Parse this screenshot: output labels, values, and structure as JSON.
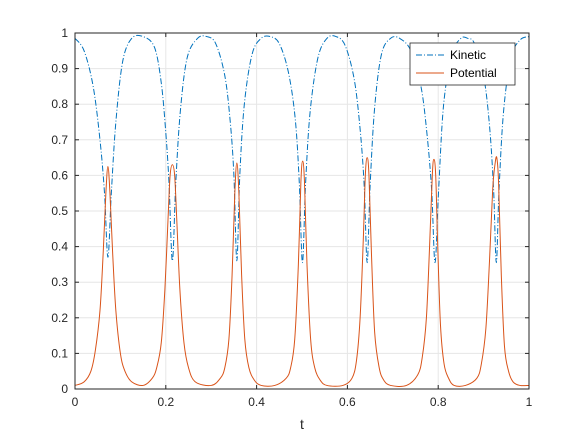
{
  "chart_data": {
    "type": "line",
    "title": "",
    "xlabel": "t",
    "ylabel": "",
    "xlim": [
      0,
      1
    ],
    "ylim": [
      0,
      1
    ],
    "x_ticks": [
      "0",
      "0.2",
      "0.4",
      "0.6",
      "0.8",
      "1"
    ],
    "y_ticks": [
      "0",
      "0.1",
      "0.2",
      "0.3",
      "0.4",
      "0.5",
      "0.6",
      "0.7",
      "0.8",
      "0.9",
      "1"
    ],
    "grid": true,
    "legend_position": "top-right",
    "colors": {
      "kinetic": "#0072BD",
      "potential": "#D95319",
      "axes": "#262626",
      "grid": "#E6E6E6"
    },
    "series": [
      {
        "name": "Kinetic",
        "style": "dash-dot",
        "x": [
          0,
          0.02,
          0.04,
          0.055,
          0.065,
          0.0725,
          0.08,
          0.09,
          0.105,
          0.125,
          0.15,
          0.175,
          0.19,
          0.2,
          0.207,
          0.2145,
          0.222,
          0.232,
          0.247,
          0.27,
          0.29,
          0.31,
          0.33,
          0.342,
          0.35,
          0.3565,
          0.363,
          0.373,
          0.39,
          0.41,
          0.43,
          0.45,
          0.47,
          0.485,
          0.494,
          0.501,
          0.508,
          0.518,
          0.535,
          0.555,
          0.575,
          0.595,
          0.615,
          0.628,
          0.637,
          0.6435,
          0.65,
          0.66,
          0.675,
          0.695,
          0.715,
          0.74,
          0.762,
          0.775,
          0.7855,
          0.793,
          0.801,
          0.812,
          0.83,
          0.85,
          0.865,
          0.88,
          0.9,
          0.913,
          0.922,
          0.928,
          0.934,
          0.944,
          0.96,
          0.98,
          1.0
        ],
        "y": [
          0.985,
          0.95,
          0.85,
          0.7,
          0.55,
          0.37,
          0.55,
          0.75,
          0.92,
          0.985,
          0.99,
          0.96,
          0.86,
          0.72,
          0.58,
          0.36,
          0.58,
          0.78,
          0.93,
          0.985,
          0.99,
          0.97,
          0.88,
          0.75,
          0.6,
          0.36,
          0.6,
          0.8,
          0.94,
          0.985,
          0.99,
          0.97,
          0.89,
          0.76,
          0.58,
          0.355,
          0.58,
          0.78,
          0.93,
          0.985,
          0.99,
          0.965,
          0.87,
          0.73,
          0.57,
          0.355,
          0.57,
          0.79,
          0.94,
          0.985,
          0.985,
          0.95,
          0.85,
          0.72,
          0.56,
          0.355,
          0.56,
          0.8,
          0.94,
          0.985,
          0.985,
          0.97,
          0.88,
          0.74,
          0.56,
          0.355,
          0.56,
          0.78,
          0.93,
          0.98,
          0.99
        ]
      },
      {
        "name": "Potential",
        "style": "solid",
        "x": [
          0,
          0.02,
          0.035,
          0.045,
          0.055,
          0.062,
          0.068,
          0.0725,
          0.077,
          0.083,
          0.09,
          0.1,
          0.11,
          0.125,
          0.15,
          0.17,
          0.18,
          0.19,
          0.198,
          0.205,
          0.2095,
          0.2145,
          0.2195,
          0.224,
          0.231,
          0.24,
          0.25,
          0.265,
          0.3,
          0.32,
          0.33,
          0.339,
          0.346,
          0.352,
          0.3565,
          0.361,
          0.367,
          0.374,
          0.383,
          0.395,
          0.41,
          0.44,
          0.465,
          0.475,
          0.484,
          0.492,
          0.4975,
          0.5015,
          0.5055,
          0.511,
          0.519,
          0.528,
          0.54,
          0.555,
          0.59,
          0.61,
          0.62,
          0.628,
          0.635,
          0.6395,
          0.6435,
          0.6475,
          0.653,
          0.66,
          0.67,
          0.68,
          0.695,
          0.73,
          0.755,
          0.765,
          0.774,
          0.781,
          0.787,
          0.7905,
          0.7945,
          0.799,
          0.805,
          0.813,
          0.823,
          0.835,
          0.86,
          0.885,
          0.895,
          0.905,
          0.913,
          0.92,
          0.925,
          0.929,
          0.933,
          0.939,
          0.946,
          0.955,
          0.965,
          0.98,
          1.0
        ],
        "y": [
          0.01,
          0.02,
          0.05,
          0.11,
          0.22,
          0.38,
          0.55,
          0.625,
          0.55,
          0.38,
          0.22,
          0.1,
          0.05,
          0.02,
          0.01,
          0.03,
          0.06,
          0.13,
          0.28,
          0.48,
          0.6,
          0.63,
          0.6,
          0.48,
          0.28,
          0.13,
          0.06,
          0.02,
          0.01,
          0.03,
          0.06,
          0.14,
          0.32,
          0.55,
          0.635,
          0.55,
          0.32,
          0.14,
          0.06,
          0.025,
          0.01,
          0.01,
          0.03,
          0.06,
          0.14,
          0.35,
          0.58,
          0.64,
          0.58,
          0.35,
          0.14,
          0.06,
          0.025,
          0.01,
          0.01,
          0.03,
          0.08,
          0.2,
          0.42,
          0.6,
          0.65,
          0.6,
          0.38,
          0.16,
          0.06,
          0.025,
          0.01,
          0.01,
          0.04,
          0.09,
          0.2,
          0.4,
          0.6,
          0.645,
          0.6,
          0.4,
          0.18,
          0.07,
          0.03,
          0.01,
          0.01,
          0.03,
          0.07,
          0.17,
          0.36,
          0.56,
          0.63,
          0.65,
          0.58,
          0.32,
          0.12,
          0.05,
          0.02,
          0.01,
          0.01
        ]
      }
    ]
  }
}
